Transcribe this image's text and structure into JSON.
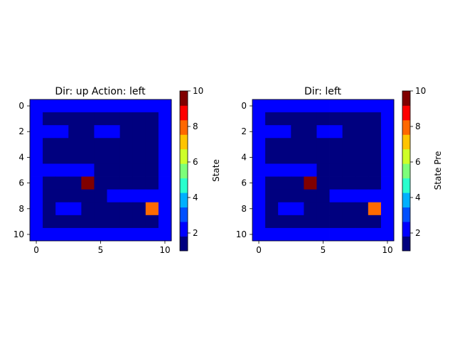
{
  "chart_data": [
    {
      "type": "heatmap",
      "title": "Dir: up  Action: left",
      "colorbar_label": "State",
      "x_ticks": [
        0,
        5,
        10
      ],
      "y_ticks": [
        0,
        2,
        4,
        6,
        8,
        10
      ],
      "colorbar_ticks": [
        2,
        4,
        6,
        8,
        10
      ],
      "value_range": [
        1,
        10
      ],
      "colormap": "jet",
      "grid": [
        [
          2,
          2,
          2,
          2,
          2,
          2,
          2,
          2,
          2,
          2,
          2
        ],
        [
          2,
          1,
          1,
          1,
          1,
          1,
          1,
          1,
          1,
          1,
          2
        ],
        [
          2,
          2,
          2,
          1,
          1,
          2,
          2,
          1,
          1,
          1,
          2
        ],
        [
          2,
          1,
          1,
          1,
          1,
          1,
          1,
          1,
          1,
          1,
          2
        ],
        [
          2,
          1,
          1,
          1,
          1,
          1,
          1,
          1,
          1,
          1,
          2
        ],
        [
          2,
          2,
          2,
          2,
          2,
          1,
          1,
          1,
          1,
          1,
          2
        ],
        [
          2,
          1,
          1,
          1,
          10,
          1,
          1,
          1,
          1,
          1,
          2
        ],
        [
          2,
          1,
          1,
          1,
          1,
          1,
          2,
          2,
          2,
          2,
          2
        ],
        [
          2,
          1,
          2,
          2,
          1,
          1,
          1,
          1,
          1,
          8,
          2
        ],
        [
          2,
          1,
          1,
          1,
          1,
          1,
          1,
          1,
          1,
          1,
          2
        ],
        [
          2,
          2,
          2,
          2,
          2,
          2,
          2,
          2,
          2,
          2,
          2
        ]
      ]
    },
    {
      "type": "heatmap",
      "title": "Dir: left",
      "colorbar_label": "State Pre",
      "x_ticks": [
        0,
        5,
        10
      ],
      "y_ticks": [
        0,
        2,
        4,
        6,
        8,
        10
      ],
      "colorbar_ticks": [
        2,
        4,
        6,
        8,
        10
      ],
      "value_range": [
        1,
        10
      ],
      "colormap": "jet",
      "grid": [
        [
          2,
          2,
          2,
          2,
          2,
          2,
          2,
          2,
          2,
          2,
          2
        ],
        [
          2,
          1,
          1,
          1,
          1,
          1,
          1,
          1,
          1,
          1,
          2
        ],
        [
          2,
          2,
          2,
          1,
          1,
          2,
          2,
          1,
          1,
          1,
          2
        ],
        [
          2,
          1,
          1,
          1,
          1,
          1,
          1,
          1,
          1,
          1,
          2
        ],
        [
          2,
          1,
          1,
          1,
          1,
          1,
          1,
          1,
          1,
          1,
          2
        ],
        [
          2,
          2,
          2,
          2,
          2,
          1,
          1,
          1,
          1,
          1,
          2
        ],
        [
          2,
          1,
          1,
          1,
          10,
          1,
          1,
          1,
          1,
          1,
          2
        ],
        [
          2,
          1,
          1,
          1,
          1,
          1,
          2,
          2,
          2,
          2,
          2
        ],
        [
          2,
          1,
          2,
          2,
          1,
          1,
          1,
          1,
          1,
          8,
          2
        ],
        [
          2,
          1,
          1,
          1,
          1,
          1,
          1,
          1,
          1,
          1,
          2
        ],
        [
          2,
          2,
          2,
          2,
          2,
          2,
          2,
          2,
          2,
          2,
          2
        ]
      ]
    }
  ]
}
